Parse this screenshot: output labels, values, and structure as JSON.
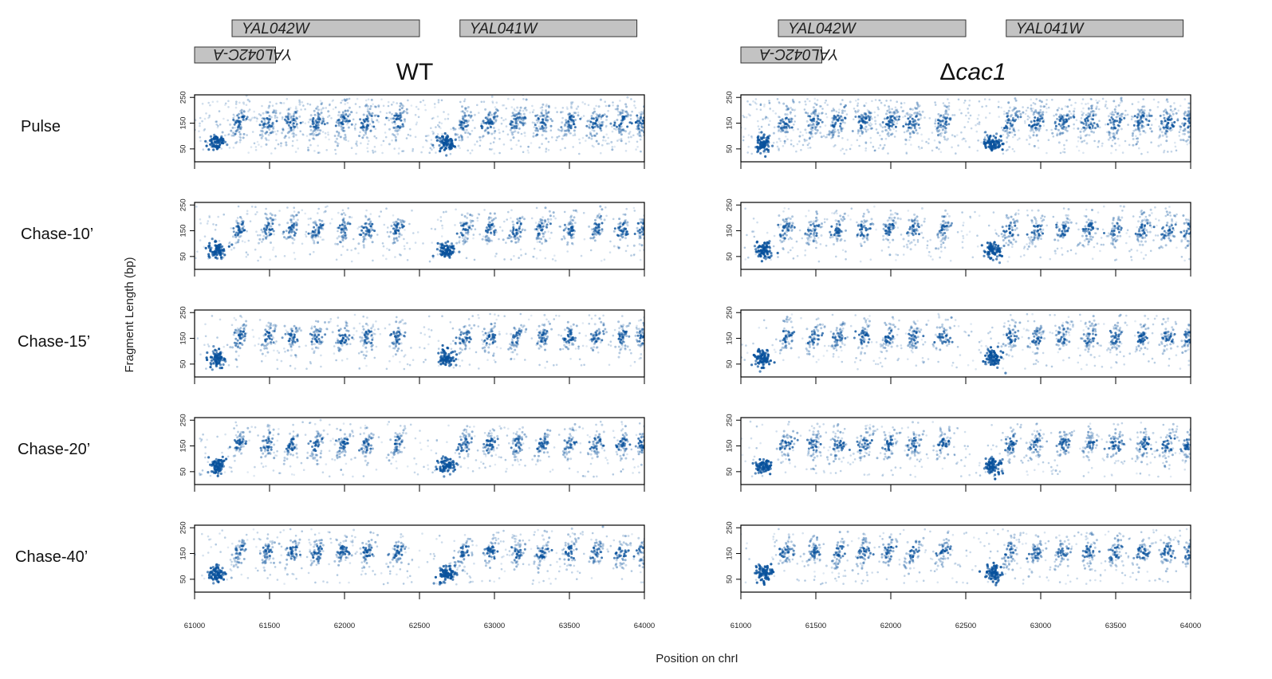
{
  "chart_data": {
    "type": "scatter",
    "title": "",
    "xlabel": "Position on chrI",
    "ylabel": "Fragment Length (bp)",
    "xlim": [
      61000,
      64000
    ],
    "ylim": [
      0,
      260
    ],
    "x_ticks": [
      61000,
      61500,
      62000,
      62500,
      63000,
      63500,
      64000
    ],
    "x_tick_labels": [
      "61000",
      "61500",
      "62000",
      "62500",
      "63000",
      "63500",
      "64000"
    ],
    "y_ticks": [
      50,
      150,
      250
    ],
    "y_tick_labels": [
      "50",
      "150",
      "250"
    ],
    "grid": false,
    "point_color": "#08519c",
    "conditions": [
      {
        "title_prefix": "",
        "title_main": "WT",
        "italic": false
      },
      {
        "title_prefix": "Δ",
        "title_main": "cac1",
        "italic": true
      }
    ],
    "time_points": [
      "Pulse",
      "Chase-10’",
      "Chase-15’",
      "Chase-20’",
      "Chase-40’"
    ],
    "genes": [
      {
        "name": "YAL042W",
        "strand": "+",
        "start": 61250,
        "end": 62500
      },
      {
        "name": "YAL041W",
        "strand": "+",
        "start": 62770,
        "end": 63950
      },
      {
        "name": "YAL042C-A",
        "strand": "-",
        "start": 61000,
        "end": 61540
      }
    ],
    "features": {
      "nucleosome_centers": [
        61300,
        61490,
        61650,
        61820,
        61990,
        62150,
        62350,
        62800,
        62970,
        63150,
        63320,
        63500,
        63680,
        63850,
        63990
      ],
      "nucleosome_size_bp": 160,
      "subnucleosomal_peaks": [
        61150,
        62680
      ],
      "subnucleosomal_size_bp": 70
    }
  }
}
